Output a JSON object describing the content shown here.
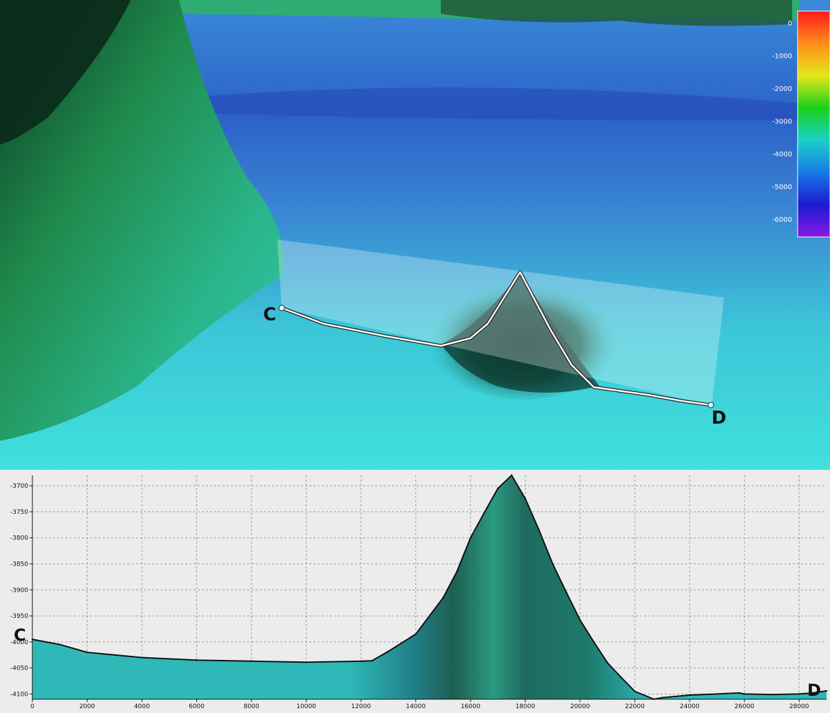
{
  "view3d": {
    "point_start_label": "C",
    "point_end_label": "D",
    "colorbar": {
      "ticks": [
        "0",
        "-1000",
        "-2000",
        "-3000",
        "-4000",
        "-5000",
        "-6000"
      ],
      "colors": [
        "#ff1a1a",
        "#ff8c1a",
        "#e6e61a",
        "#1ad11a",
        "#1ad1c8",
        "#1a7ae6",
        "#1a1ad1",
        "#8a1ae6"
      ]
    }
  },
  "chart_data": {
    "type": "area",
    "title": "",
    "xlabel": "",
    "ylabel": "",
    "xlim": [
      0,
      29000
    ],
    "ylim": [
      -4110,
      -3680
    ],
    "x_ticks": [
      "0",
      "2000",
      "4000",
      "6000",
      "8000",
      "10000",
      "12000",
      "14000",
      "16000",
      "18000",
      "20000",
      "22000",
      "24000",
      "26000",
      "28000"
    ],
    "y_ticks": [
      "-3700",
      "-3750",
      "-3800",
      "-3850",
      "-3900",
      "-3950",
      "-4000",
      "-4050",
      "-4100"
    ],
    "grid": true,
    "start_label": "C",
    "end_label": "D",
    "x": [
      0,
      1000,
      2000,
      4000,
      6000,
      8000,
      10000,
      12000,
      12400,
      13000,
      14000,
      15000,
      15500,
      16000,
      16500,
      17000,
      17500,
      18000,
      18500,
      19000,
      19500,
      20000,
      20500,
      21000,
      21500,
      22000,
      22700,
      23000,
      24000,
      25000,
      25800,
      26000,
      27000,
      28000,
      28500,
      29000
    ],
    "y": [
      -3995,
      -4005,
      -4020,
      -4030,
      -4035,
      -4037,
      -4039,
      -4037,
      -4036,
      -4018,
      -3985,
      -3915,
      -3865,
      -3800,
      -3752,
      -3705,
      -3680,
      -3725,
      -3785,
      -3850,
      -3905,
      -3958,
      -4000,
      -4040,
      -4068,
      -4095,
      -4110,
      -4107,
      -4102,
      -4100,
      -4098,
      -4100,
      -4101,
      -4100,
      -4098,
      -4094
    ],
    "colors": {
      "fill_shallow": "#2fb8b8",
      "fill_deep_band": "#1f5e52",
      "fill_peak": "#2a9a80",
      "line": "#111111",
      "background": "#ececec"
    }
  }
}
